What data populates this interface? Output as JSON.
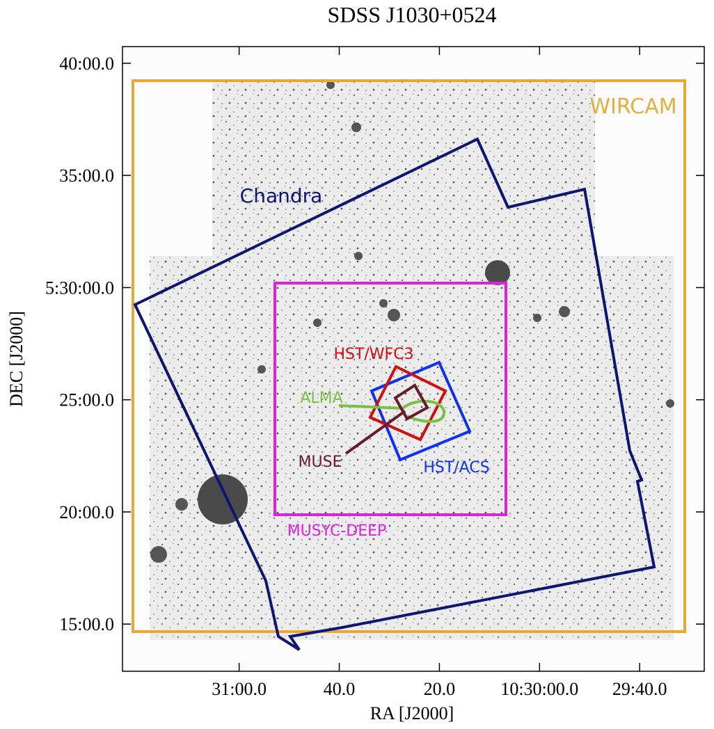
{
  "chart_data": {
    "type": "sky-map",
    "title": "SDSS J1030+0524",
    "x_label": "RA [J2000]",
    "y_label": "DEC [J2000]",
    "xlim": [
      37883.3,
      37767.1
    ],
    "xticks": [
      {
        "value": 37860,
        "label": "31:00.0"
      },
      {
        "value": 37840,
        "label": "40.0"
      },
      {
        "value": 37820,
        "label": "20.0"
      },
      {
        "value": 37800,
        "label": "10:30:00.0"
      },
      {
        "value": 37780,
        "label": "29:40.0"
      }
    ],
    "ylim": [
      18773.8,
      20444.6
    ],
    "yticks": [
      {
        "value": 20400,
        "label": "40:00.0"
      },
      {
        "value": 20100,
        "label": "35:00.0"
      },
      {
        "value": 19800,
        "label": "5:30:00.0"
      },
      {
        "value": 19500,
        "label": "25:00.0"
      },
      {
        "value": 19200,
        "label": "20:00.0"
      },
      {
        "value": 18900,
        "label": "15:00.0"
      }
    ],
    "footprints": [
      "WIRCAM",
      "Chandra",
      "HST/WFC3",
      "ALMA",
      "MUSE",
      "HST/ACS",
      "MUSYC-DEEP"
    ]
  }
}
